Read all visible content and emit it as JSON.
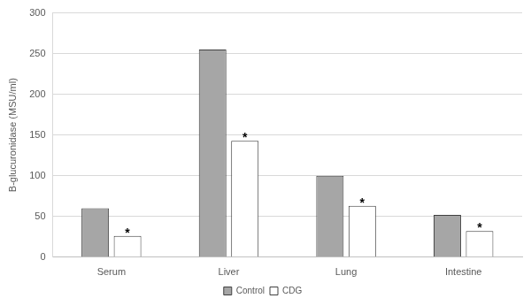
{
  "chart_data": {
    "type": "bar",
    "y_label": "B-glucuronidase (MSU/ml)",
    "categories": [
      "Serum",
      "Liver",
      "Lung",
      "Intestine"
    ],
    "series": [
      {
        "name": "Control",
        "color": "#a6a6a6",
        "values": [
          60,
          255,
          100,
          52
        ]
      },
      {
        "name": "CDG",
        "color": "#ffffff",
        "values": [
          26,
          143,
          63,
          32
        ]
      }
    ],
    "ylim": [
      0,
      300
    ],
    "yticks": [
      0,
      50,
      100,
      150,
      200,
      250,
      300
    ],
    "grid": true,
    "legend": "bottom",
    "annotations": [
      {
        "series": "CDG",
        "category": "Serum",
        "text": "*"
      },
      {
        "series": "CDG",
        "category": "Liver",
        "text": "*"
      },
      {
        "series": "CDG",
        "category": "Lung",
        "text": "*"
      },
      {
        "series": "CDG",
        "category": "Intestine",
        "text": "*"
      }
    ]
  }
}
